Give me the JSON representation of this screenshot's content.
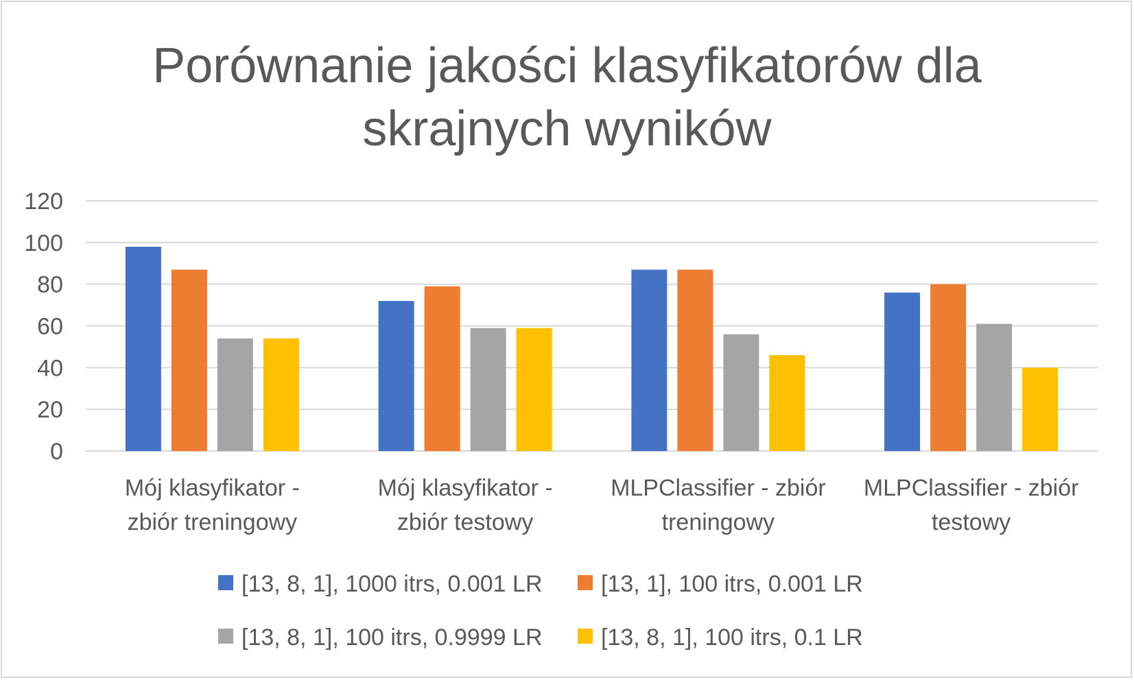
{
  "chart_data": {
    "type": "bar",
    "title": "Porównanie jakości klasyfikatorów dla skrajnych wyników",
    "title_lines": [
      "Porównanie jakości klasyfikatorów dla",
      "skrajnych wyników"
    ],
    "categories": [
      "Mój klasyfikator - zbiór treningowy",
      "Mój klasyfikator - zbiór testowy",
      "MLPClassifier - zbiór treningowy",
      "MLPClassifier - zbiór testowy"
    ],
    "category_lines": [
      [
        "Mój klasyfikator -",
        "zbiór treningowy"
      ],
      [
        "Mój klasyfikator -",
        "zbiór testowy"
      ],
      [
        "MLPClassifier - zbiór",
        "treningowy"
      ],
      [
        "MLPClassifier - zbiór",
        "testowy"
      ]
    ],
    "series": [
      {
        "name": "[13, 8, 1], 1000 itrs, 0.001 LR",
        "color": "#4472c4",
        "values": [
          98,
          72,
          87,
          76
        ]
      },
      {
        "name": "[13, 1], 100 itrs, 0.001 LR",
        "color": "#ed7d31",
        "values": [
          87,
          79,
          87,
          80
        ]
      },
      {
        "name": "[13, 8, 1], 100 itrs, 0.9999 LR",
        "color": "#a5a5a5",
        "values": [
          54,
          59,
          56,
          61
        ]
      },
      {
        "name": "[13, 8, 1], 100 itrs, 0.1 LR",
        "color": "#ffc000",
        "values": [
          54,
          59,
          46,
          40
        ]
      }
    ],
    "ylim": [
      0,
      120
    ],
    "yticks": [
      0,
      20,
      40,
      60,
      80,
      100,
      120
    ],
    "xlabel": "",
    "ylabel": "",
    "grid": true,
    "legend": "bottom"
  }
}
